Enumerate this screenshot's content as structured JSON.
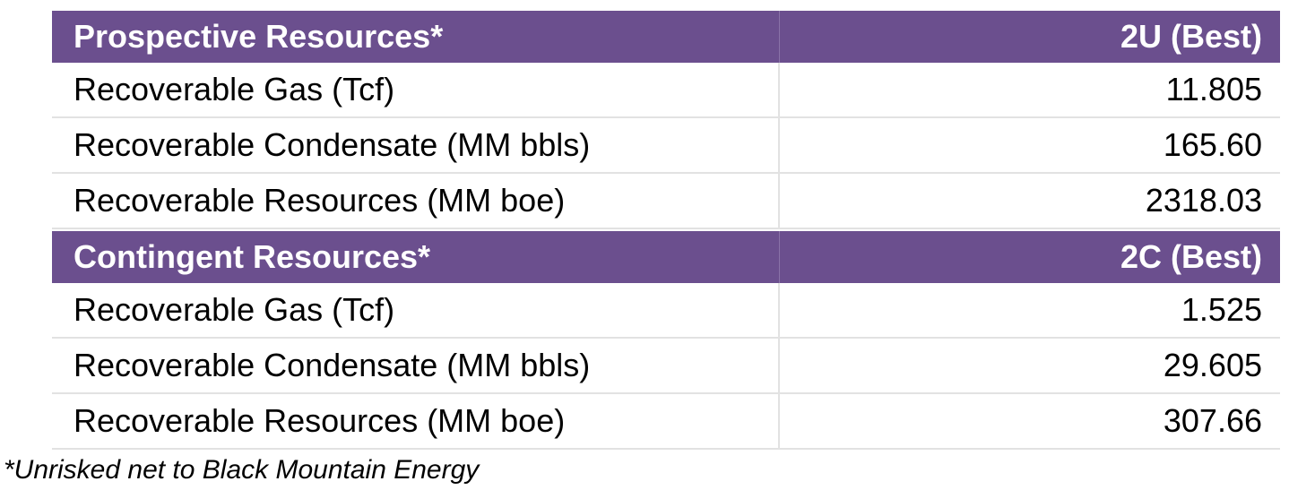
{
  "table": {
    "sections": [
      {
        "header": [
          "Prospective Resources*",
          "2U (Best)"
        ],
        "rows": [
          [
            "Recoverable Gas (Tcf)",
            "11.805"
          ],
          [
            "Recoverable Condensate (MM bbls)",
            "165.60"
          ],
          [
            "Recoverable Resources (MM boe)",
            "2318.03"
          ]
        ]
      },
      {
        "header": [
          "Contingent Resources*",
          "2C (Best)"
        ],
        "rows": [
          [
            "Recoverable Gas (Tcf)",
            "1.525"
          ],
          [
            "Recoverable Condensate (MM bbls)",
            "29.605"
          ],
          [
            "Recoverable Resources (MM boe)",
            "307.66"
          ]
        ]
      }
    ]
  },
  "footnote": "*Unrisked net to Black Mountain Energy"
}
